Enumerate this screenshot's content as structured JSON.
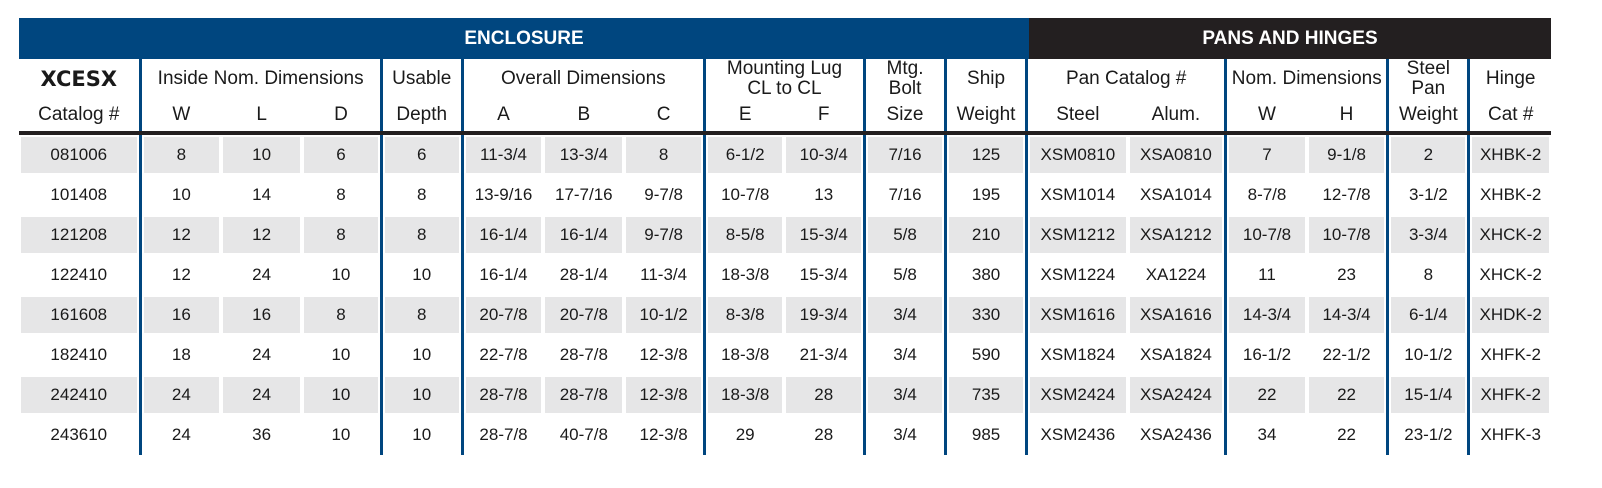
{
  "banner": {
    "enclosure": "ENCLOSURE",
    "pans": "PANS AND HINGES"
  },
  "header": {
    "brand": "XCESX",
    "catalog": "Catalog #",
    "inside": "Inside Nom. Dimensions",
    "w": "W",
    "l": "L",
    "d": "D",
    "usable": "Usable",
    "depth": "Depth",
    "overall": "Overall Dimensions",
    "a": "A",
    "b": "B",
    "c": "C",
    "mounting": "Mounting Lug",
    "cl": "CL to CL",
    "e": "E",
    "f": "F",
    "mtg": "Mtg.",
    "bolt": "Bolt",
    "size": "Size",
    "ship": "Ship",
    "weight": "Weight",
    "pancat": "Pan Catalog #",
    "steel": "Steel",
    "alum": "Alum.",
    "nom": "Nom. Dimensions",
    "pw": "W",
    "ph": "H",
    "spw1": "Steel",
    "spw2": "Pan",
    "spw3": "Weight",
    "hinge": "Hinge",
    "hcat": "Cat #"
  },
  "rows": [
    [
      "081006",
      "8",
      "10",
      "6",
      "6",
      "11-3/4",
      "13-3/4",
      "8",
      "6-1/2",
      "10-3/4",
      "7/16",
      "125",
      "XSM0810",
      "XSA0810",
      "7",
      "9-1/8",
      "2",
      "XHBK-2"
    ],
    [
      "101408",
      "10",
      "14",
      "8",
      "8",
      "13-9/16",
      "17-7/16",
      "9-7/8",
      "10-7/8",
      "13",
      "7/16",
      "195",
      "XSM1014",
      "XSA1014",
      "8-7/8",
      "12-7/8",
      "3-1/2",
      "XHBK-2"
    ],
    [
      "121208",
      "12",
      "12",
      "8",
      "8",
      "16-1/4",
      "16-1/4",
      "9-7/8",
      "8-5/8",
      "15-3/4",
      "5/8",
      "210",
      "XSM1212",
      "XSA1212",
      "10-7/8",
      "10-7/8",
      "3-3/4",
      "XHCK-2"
    ],
    [
      "122410",
      "12",
      "24",
      "10",
      "10",
      "16-1/4",
      "28-1/4",
      "11-3/4",
      "18-3/8",
      "15-3/4",
      "5/8",
      "380",
      "XSM1224",
      "XA1224",
      "11",
      "23",
      "8",
      "XHCK-2"
    ],
    [
      "161608",
      "16",
      "16",
      "8",
      "8",
      "20-7/8",
      "20-7/8",
      "10-1/2",
      "8-3/8",
      "19-3/4",
      "3/4",
      "330",
      "XSM1616",
      "XSA1616",
      "14-3/4",
      "14-3/4",
      "6-1/4",
      "XHDK-2"
    ],
    [
      "182410",
      "18",
      "24",
      "10",
      "10",
      "22-7/8",
      "28-7/8",
      "12-3/8",
      "18-3/8",
      "21-3/4",
      "3/4",
      "590",
      "XSM1824",
      "XSA1824",
      "16-1/2",
      "22-1/2",
      "10-1/2",
      "XHFK-2"
    ],
    [
      "242410",
      "24",
      "24",
      "10",
      "10",
      "28-7/8",
      "28-7/8",
      "12-3/8",
      "18-3/8",
      "28",
      "3/4",
      "735",
      "XSM2424",
      "XSA2424",
      "22",
      "22",
      "15-1/4",
      "XHFK-2"
    ],
    [
      "243610",
      "24",
      "36",
      "10",
      "10",
      "28-7/8",
      "40-7/8",
      "12-3/8",
      "29",
      "28",
      "3/4",
      "985",
      "XSM2436",
      "XSA2436",
      "34",
      "22",
      "23-1/2",
      "XHFK-3"
    ]
  ]
}
